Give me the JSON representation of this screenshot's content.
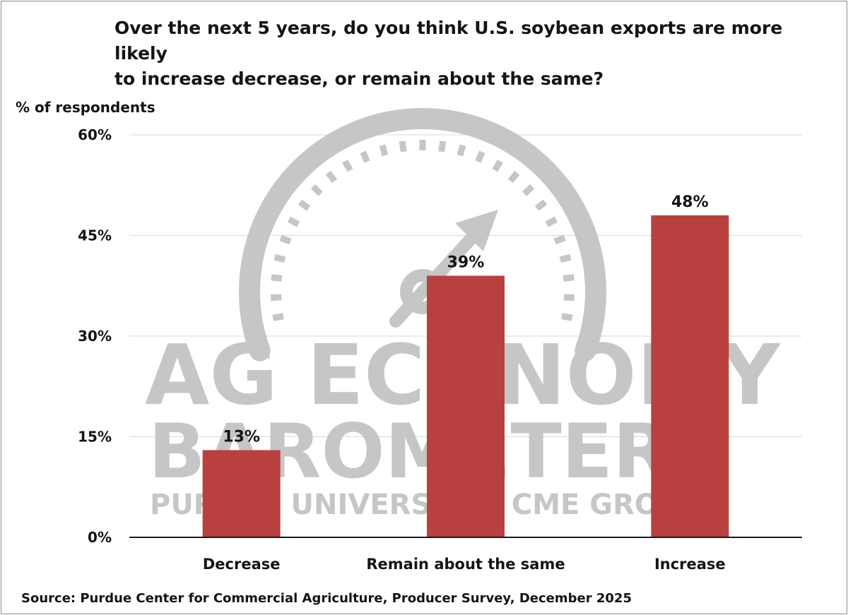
{
  "chart_data": {
    "type": "bar",
    "title_lines": [
      "Over the next 5 years, do you think U.S. soybean exports are more likely",
      "to increase decrease, or remain about the same?"
    ],
    "ylabel": "% of respondents",
    "xlabel": "",
    "categories": [
      "Decrease",
      "Remain about the same",
      "Increase"
    ],
    "values": [
      13,
      39,
      48
    ],
    "data_labels": [
      "13%",
      "39%",
      "48%"
    ],
    "ylim": [
      0,
      60
    ],
    "yticks": [
      0,
      15,
      30,
      45,
      60
    ],
    "ytick_labels": [
      "0%",
      "15%",
      "30%",
      "45%",
      "60%"
    ],
    "grid": true,
    "legend": "none",
    "bar_color": "#b84140",
    "source": "Source: Purdue Center for Commercial Agriculture, Producer Survey, December 2025"
  },
  "watermark": {
    "line1": "AG ECONOMY",
    "line2": "BAROMETER",
    "line3": "PURDUE UNIVERSITY | CME GROUP",
    "icon": "gauge-arrow-icon",
    "color": "#c4c4c4"
  }
}
